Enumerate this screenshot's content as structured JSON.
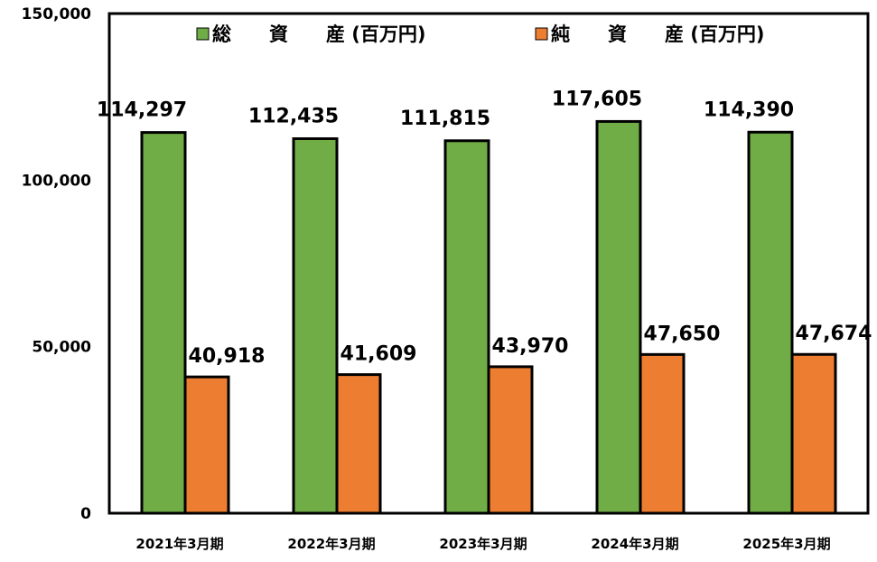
{
  "chart_data": {
    "type": "bar",
    "categories": [
      "2021年3月期",
      "2022年3月期",
      "2023年3月期",
      "2024年3月期",
      "2025年3月期"
    ],
    "series": [
      {
        "name": "総　　資　　産 (百万円)",
        "values": [
          114297,
          112435,
          111815,
          117605,
          114390
        ],
        "color": "#70ad47"
      },
      {
        "name": "純　　資　　産 (百万円)",
        "values": [
          40918,
          41609,
          43970,
          47650,
          47674
        ],
        "color": "#ed7d31"
      }
    ],
    "data_labels": [
      [
        "114,297",
        "112,435",
        "111,815",
        "117,605",
        "114,390"
      ],
      [
        "40,918",
        "41,609",
        "43,970",
        "47,650",
        "47,674"
      ]
    ],
    "ylim": [
      0,
      150000
    ],
    "yticks": [
      0,
      50000,
      100000,
      150000
    ],
    "ytick_labels": [
      "0",
      "50,000",
      "100,000",
      "150,000"
    ],
    "legend_position": "top",
    "grid": false,
    "title": "",
    "xlabel": "",
    "ylabel": ""
  }
}
